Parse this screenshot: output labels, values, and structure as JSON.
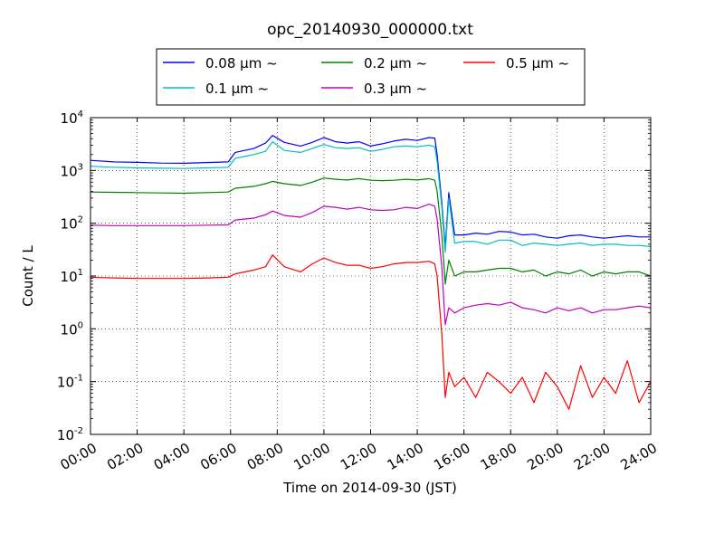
{
  "chart_data": {
    "type": "line",
    "title": "opc_20140930_000000.txt",
    "xlabel": "Time on 2014-09-30 (JST)",
    "ylabel": "Count / L",
    "xlim": [
      0,
      24
    ],
    "ylim": [
      0.01,
      10000
    ],
    "yscale": "log",
    "grid": true,
    "legend_position": "top",
    "x_ticks": [
      "00:00",
      "02:00",
      "04:00",
      "06:00",
      "08:00",
      "10:00",
      "12:00",
      "14:00",
      "16:00",
      "18:00",
      "20:00",
      "22:00",
      "24:00"
    ],
    "y_ticks": [
      {
        "base": "10",
        "exp": "-2"
      },
      {
        "base": "10",
        "exp": "-1"
      },
      {
        "base": "10",
        "exp": "0"
      },
      {
        "base": "10",
        "exp": "1"
      },
      {
        "base": "10",
        "exp": "2"
      },
      {
        "base": "10",
        "exp": "3"
      },
      {
        "base": "10",
        "exp": "4"
      }
    ],
    "x_hours": [
      0,
      1,
      2,
      3,
      4,
      5,
      5.9,
      6.2,
      7,
      7.5,
      7.8,
      8.3,
      9,
      9.5,
      10,
      10.5,
      11,
      11.5,
      12,
      12.5,
      13,
      13.5,
      14,
      14.5,
      14.75,
      14.85,
      15.05,
      15.2,
      15.35,
      15.6,
      16,
      16.5,
      17,
      17.5,
      18,
      18.5,
      19,
      19.5,
      20,
      20.5,
      21,
      21.5,
      22,
      22.5,
      23,
      23.5,
      24
    ],
    "series": [
      {
        "name": "0.08 μm ~",
        "color": "#0000ff",
        "values": [
          1550,
          1450,
          1420,
          1380,
          1370,
          1410,
          1450,
          2200,
          2600,
          3300,
          4600,
          3400,
          2900,
          3400,
          4200,
          3500,
          3300,
          3500,
          2900,
          3200,
          3600,
          3900,
          3700,
          4200,
          4100,
          2000,
          250,
          35,
          380,
          60,
          60,
          65,
          62,
          70,
          68,
          60,
          62,
          55,
          52,
          58,
          60,
          55,
          52,
          55,
          58,
          55,
          55
        ]
      },
      {
        "name": "0.1 μm ~",
        "color": "#00bfbf",
        "values": [
          1200,
          1150,
          1120,
          1100,
          1090,
          1120,
          1150,
          1700,
          2000,
          2300,
          3500,
          2400,
          2200,
          2600,
          3100,
          2700,
          2600,
          2700,
          2300,
          2500,
          2800,
          2900,
          2800,
          3000,
          2800,
          1500,
          200,
          28,
          300,
          42,
          45,
          45,
          40,
          48,
          48,
          38,
          42,
          40,
          38,
          40,
          42,
          38,
          40,
          40,
          38,
          38,
          36
        ]
      },
      {
        "name": "0.2 μm ~",
        "color": "#008000",
        "values": [
          390,
          385,
          380,
          375,
          370,
          380,
          390,
          460,
          500,
          560,
          620,
          560,
          520,
          600,
          720,
          680,
          660,
          700,
          650,
          640,
          650,
          680,
          660,
          700,
          650,
          400,
          60,
          7,
          20,
          10,
          12,
          12,
          13,
          14,
          14,
          12,
          13,
          10,
          12,
          11,
          13,
          10,
          12,
          11,
          12,
          12,
          10
        ]
      },
      {
        "name": "0.3 μm ~",
        "color": "#bf00bf",
        "values": [
          92,
          90,
          90,
          90,
          90,
          92,
          93,
          115,
          125,
          145,
          170,
          140,
          130,
          160,
          210,
          200,
          185,
          200,
          180,
          175,
          180,
          200,
          190,
          230,
          210,
          120,
          15,
          1.2,
          2.5,
          2.0,
          2.5,
          2.8,
          3.0,
          2.8,
          3.2,
          2.5,
          2.3,
          2.0,
          2.5,
          2.2,
          2.5,
          2.0,
          2.3,
          2.3,
          2.5,
          2.7,
          2.5
        ]
      },
      {
        "name": "0.5 μm ~",
        "color": "#ff0000",
        "values": [
          9.5,
          9.2,
          9.0,
          9.0,
          9.0,
          9.2,
          9.5,
          11,
          13,
          15,
          25,
          15,
          12,
          17,
          22,
          18,
          16,
          16,
          14,
          15,
          17,
          18,
          18,
          19,
          17,
          10,
          0.8,
          0.05,
          0.15,
          0.08,
          0.12,
          0.05,
          0.15,
          0.1,
          0.06,
          0.12,
          0.04,
          0.15,
          0.08,
          0.03,
          0.2,
          0.05,
          0.12,
          0.06,
          0.25,
          0.04,
          0.1
        ]
      }
    ]
  }
}
